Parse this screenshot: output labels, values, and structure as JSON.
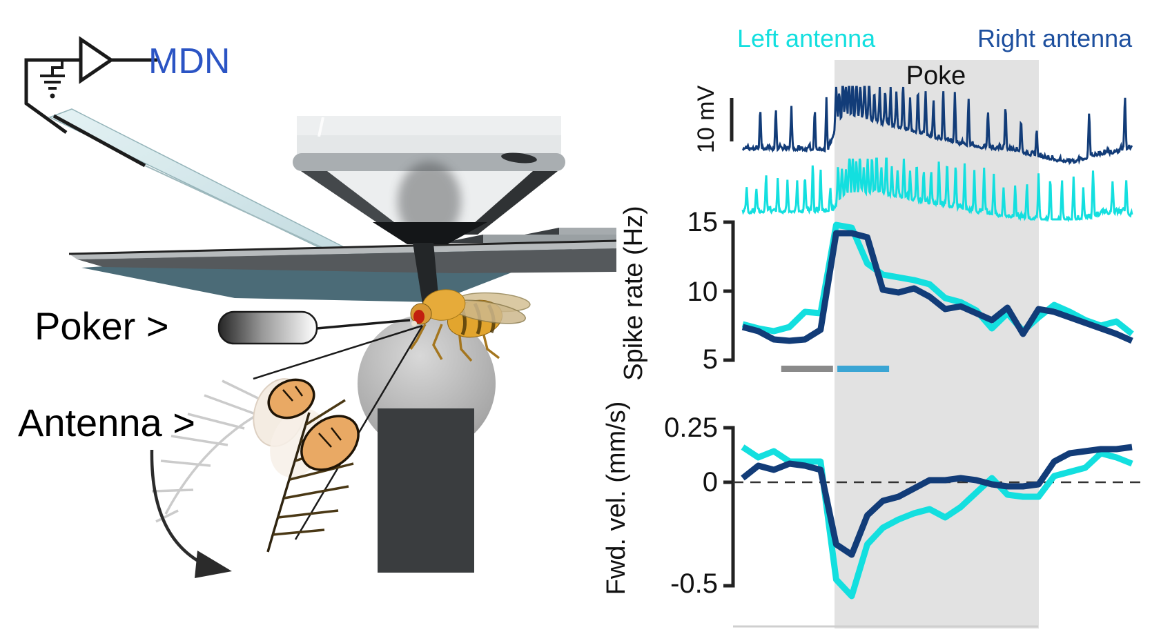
{
  "labels": {
    "mdn": "MDN",
    "poker": "Poker >",
    "antenna": "Antenna >",
    "left_antenna": "Left antenna",
    "right_antenna": "Right antenna",
    "poke": "Poke"
  },
  "colors": {
    "left_antenna_cyan": "#13dfdf",
    "right_antenna_navy": "#123c78",
    "right_antenna_text": "#1d4f9e",
    "mdn_blue": "#2b54c4",
    "poke_shade": "#e2e2e2",
    "pre_poke_bar": "#8a8a8a",
    "poke_onset_bar": "#3aa5d4"
  },
  "chart_data": [
    {
      "type": "line",
      "title": "Membrane voltage traces during antennal poke",
      "scalebar": "10 mV",
      "annotations": {
        "poke_label": "Poke",
        "poke_window_frac": [
          0.236,
          0.759
        ]
      },
      "series": [
        {
          "name": "Right antenna",
          "color": "#123c78",
          "spike_times": [
            0.045,
            0.085,
            0.125,
            0.185,
            0.215,
            0.24,
            0.248,
            0.257,
            0.265,
            0.273,
            0.282,
            0.292,
            0.302,
            0.313,
            0.325,
            0.338,
            0.352,
            0.366,
            0.38,
            0.395,
            0.412,
            0.43,
            0.45,
            0.47,
            0.49,
            0.515,
            0.545,
            0.58,
            0.63,
            0.675,
            0.715,
            0.755,
            0.89,
            0.982
          ]
        },
        {
          "name": "Left antenna",
          "color": "#13dfdf",
          "spike_times": [
            0.01,
            0.035,
            0.06,
            0.09,
            0.115,
            0.14,
            0.16,
            0.18,
            0.2,
            0.225,
            0.245,
            0.255,
            0.265,
            0.274,
            0.283,
            0.292,
            0.301,
            0.311,
            0.321,
            0.332,
            0.344,
            0.356,
            0.369,
            0.383,
            0.398,
            0.414,
            0.43,
            0.447,
            0.465,
            0.484,
            0.504,
            0.525,
            0.547,
            0.57,
            0.595,
            0.62,
            0.645,
            0.67,
            0.7,
            0.73,
            0.76,
            0.79,
            0.82,
            0.85,
            0.875,
            0.9,
            0.95,
            0.985
          ]
        }
      ]
    },
    {
      "type": "line",
      "ylabel": "Spike rate (Hz)",
      "yticks": [
        "15",
        "10",
        "5"
      ],
      "ylim": [
        5,
        15.5
      ],
      "x_axis": "time, 26 unlabeled bins; gray band = Poke",
      "series": [
        {
          "name": "Left antenna",
          "color": "#13dfdf",
          "values": [
            7.6,
            7.3,
            7.1,
            7.4,
            8.5,
            8.4,
            14.8,
            14.6,
            12.0,
            11.2,
            11.0,
            10.8,
            10.5,
            9.5,
            9.2,
            8.6,
            7.3,
            8.4,
            7.1,
            8.1,
            9.0,
            8.5,
            7.9,
            7.5,
            7.8,
            6.9
          ]
        },
        {
          "name": "Right antenna",
          "color": "#123c78",
          "values": [
            7.4,
            7.1,
            6.5,
            6.4,
            6.5,
            7.2,
            14.2,
            14.2,
            13.9,
            10.1,
            9.9,
            10.2,
            9.6,
            8.7,
            8.9,
            8.4,
            7.9,
            8.8,
            6.9,
            8.7,
            8.5,
            8.1,
            7.7,
            7.3,
            6.9,
            6.4
          ]
        }
      ],
      "markers": [
        {
          "name": "pre-poke-bar",
          "color": "#8a8a8a",
          "frac": [
            0.099,
            0.232
          ]
        },
        {
          "name": "poke-onset-bar",
          "color": "#3aa5d4",
          "frac": [
            0.243,
            0.376
          ]
        }
      ]
    },
    {
      "type": "line",
      "ylabel": "Fwd. vel. (mm/s)",
      "yticks": [
        "0.25",
        "0",
        "-0.5"
      ],
      "ylim": [
        -0.62,
        0.3
      ],
      "zero_line": "dashed",
      "series": [
        {
          "name": "Left antenna",
          "color": "#13dfdf",
          "values": [
            0.17,
            0.12,
            0.15,
            0.1,
            0.1,
            0.1,
            -0.47,
            -0.55,
            -0.3,
            -0.22,
            -0.18,
            -0.15,
            -0.13,
            -0.17,
            -0.12,
            -0.05,
            0.02,
            -0.06,
            -0.07,
            -0.07,
            0.03,
            0.05,
            0.07,
            0.14,
            0.12,
            0.09
          ]
        },
        {
          "name": "Right antenna",
          "color": "#123c78",
          "values": [
            0.02,
            0.08,
            0.06,
            0.09,
            0.08,
            0.06,
            -0.3,
            -0.35,
            -0.16,
            -0.09,
            -0.07,
            -0.03,
            0.01,
            0.01,
            0.02,
            0.01,
            -0.01,
            -0.02,
            -0.02,
            -0.01,
            0.1,
            0.14,
            0.15,
            0.16,
            0.16,
            0.17
          ]
        }
      ]
    }
  ]
}
